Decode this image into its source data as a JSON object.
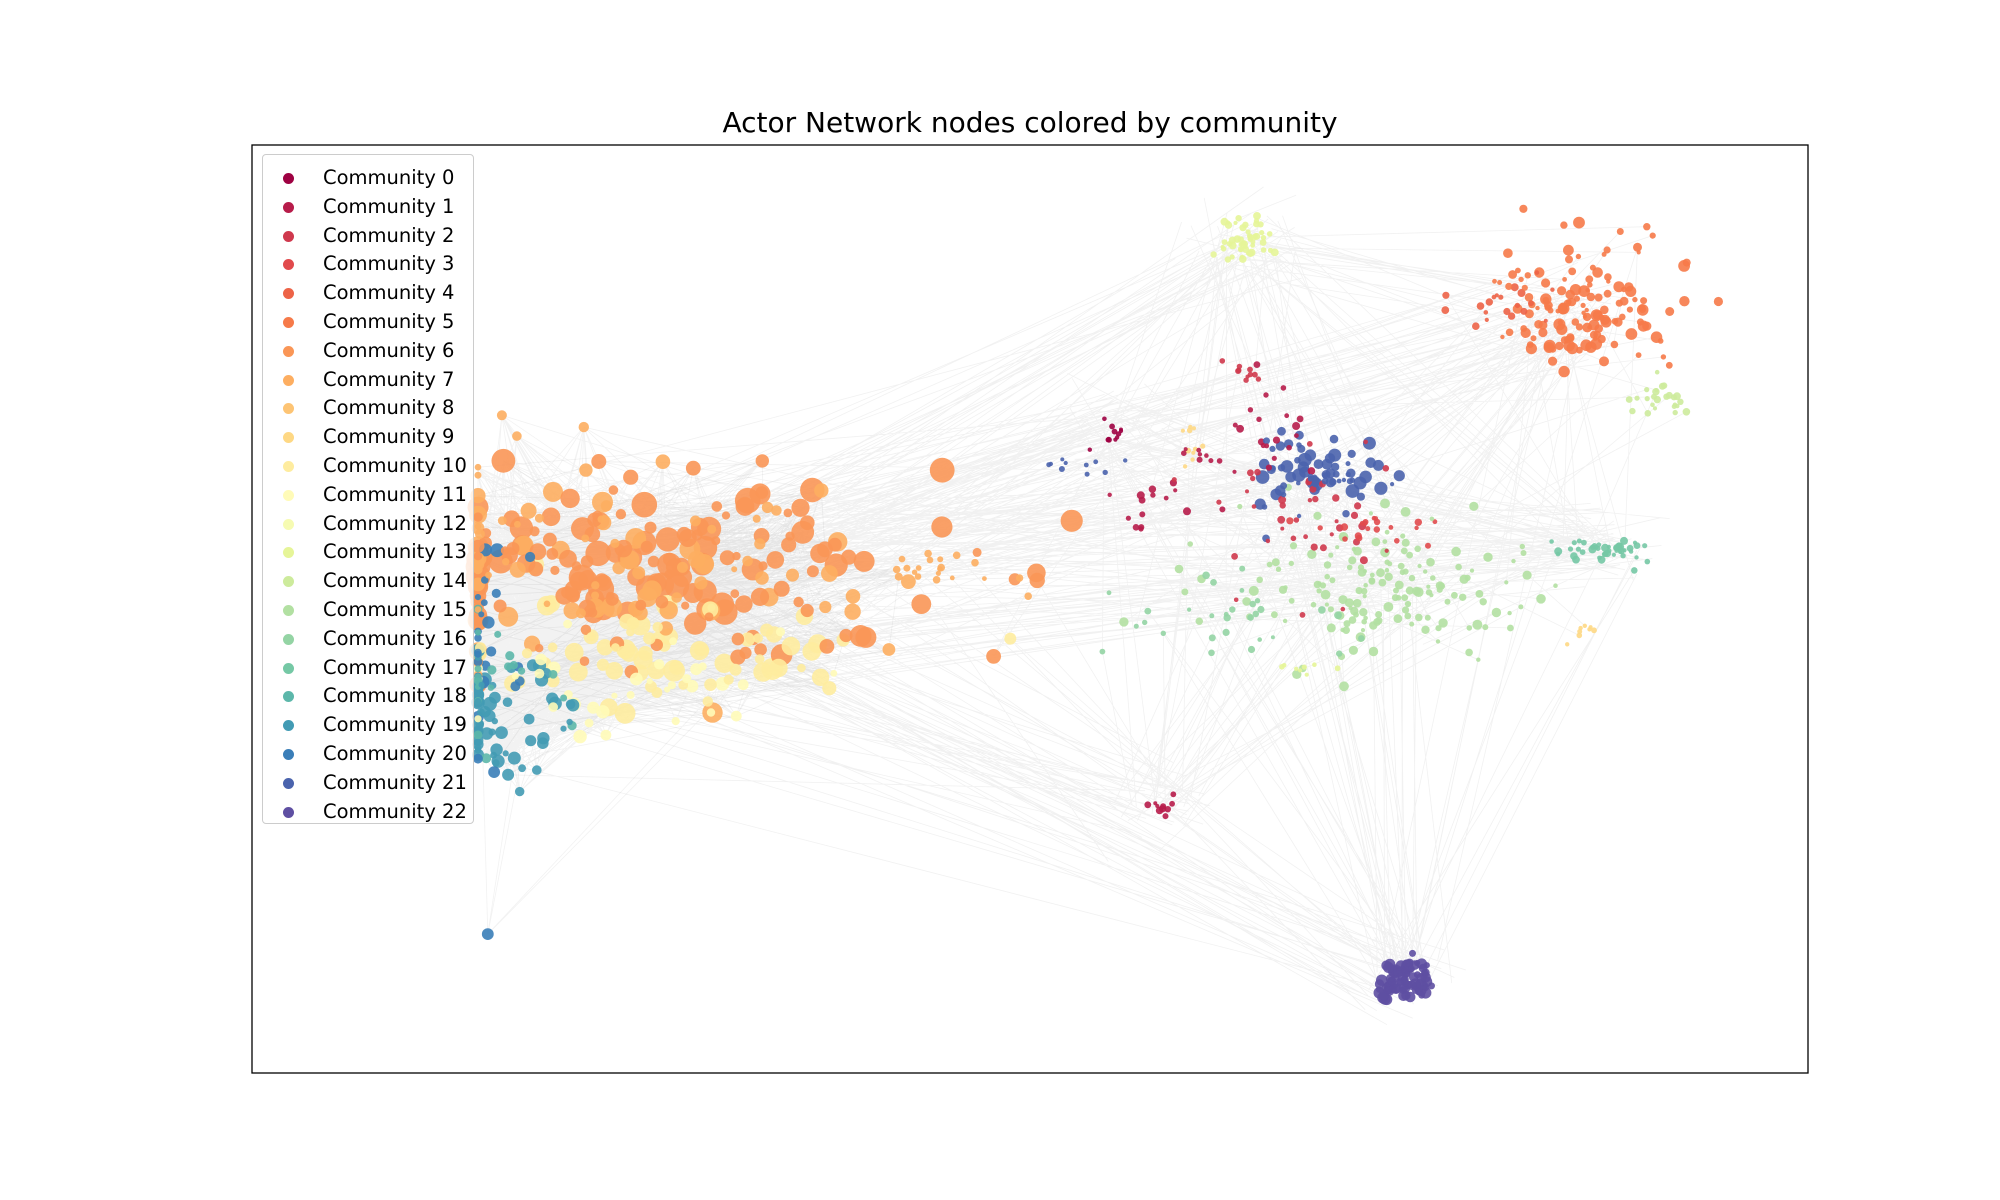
{
  "figure": {
    "title": "Actor Network nodes colored by community"
  },
  "chart_data": {
    "type": "network",
    "title": "Actor Network nodes colored by community",
    "legend_placement": "upper-left",
    "axes_ticks": false,
    "edge_color": "#555555",
    "communities": [
      {
        "id": 0,
        "label": "Community 0",
        "color": "#9e0142"
      },
      {
        "id": 1,
        "label": "Community 1",
        "color": "#b71c4a"
      },
      {
        "id": 2,
        "label": "Community 2",
        "color": "#cf384d"
      },
      {
        "id": 3,
        "label": "Community 3",
        "color": "#e14a4c"
      },
      {
        "id": 4,
        "label": "Community 4",
        "color": "#ed6347"
      },
      {
        "id": 5,
        "label": "Community 5",
        "color": "#f67a49"
      },
      {
        "id": 6,
        "label": "Community 6",
        "color": "#fa9656"
      },
      {
        "id": 7,
        "label": "Community 7",
        "color": "#fdae61"
      },
      {
        "id": 8,
        "label": "Community 8",
        "color": "#fdc474"
      },
      {
        "id": 9,
        "label": "Community 9",
        "color": "#fed884"
      },
      {
        "id": 10,
        "label": "Community 10",
        "color": "#feec9f"
      },
      {
        "id": 11,
        "label": "Community 11",
        "color": "#fffbb8"
      },
      {
        "id": 12,
        "label": "Community 12",
        "color": "#f6fbb2"
      },
      {
        "id": 13,
        "label": "Community 13",
        "color": "#e6f598"
      },
      {
        "id": 14,
        "label": "Community 14",
        "color": "#cdeb9c"
      },
      {
        "id": 15,
        "label": "Community 15",
        "color": "#b2e0a2"
      },
      {
        "id": 16,
        "label": "Community 16",
        "color": "#94d4a4"
      },
      {
        "id": 17,
        "label": "Community 17",
        "color": "#75c8a5"
      },
      {
        "id": 18,
        "label": "Community 18",
        "color": "#5cb7aa"
      },
      {
        "id": 19,
        "label": "Community 19",
        "color": "#429bb4"
      },
      {
        "id": 20,
        "label": "Community 20",
        "color": "#3a7eb8"
      },
      {
        "id": 21,
        "label": "Community 21",
        "color": "#4a63ad"
      },
      {
        "id": 22,
        "label": "Community 22",
        "color": "#5e4fa2"
      }
    ]
  }
}
